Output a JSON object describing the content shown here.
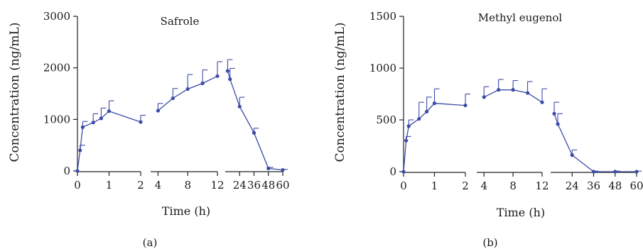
{
  "colors": {
    "series": "#3c4ba6",
    "axis": "#222222"
  },
  "chart_data": [
    {
      "type": "line",
      "panel_label": "(a)",
      "title": "Safrole",
      "xlabel": "Time (h)",
      "ylabel": "Concentration (ng/mL)",
      "ylim": [
        0,
        3000
      ],
      "yticks": [
        0,
        1000,
        2000,
        3000
      ],
      "segments": [
        {
          "xlim": [
            0,
            2
          ],
          "xticks": [
            0,
            1,
            2
          ]
        },
        {
          "xlim": [
            3,
            12
          ],
          "xticks": [
            4,
            8,
            12
          ]
        },
        {
          "xlim": [
            12,
            60
          ],
          "xticks": [
            24,
            36,
            48,
            60
          ]
        }
      ],
      "series": [
        {
          "points": [
            {
              "x": 0,
              "y": 0,
              "err": 0
            },
            {
              "x": 0.083,
              "y": 400,
              "err": 100
            },
            {
              "x": 0.167,
              "y": 850,
              "err": 110
            },
            {
              "x": 0.5,
              "y": 940,
              "err": 170
            },
            {
              "x": 0.75,
              "y": 1020,
              "err": 200
            },
            {
              "x": 1,
              "y": 1160,
              "err": 200
            },
            {
              "x": 2,
              "y": 950,
              "err": 130
            },
            {
              "x": 4,
              "y": 1170,
              "err": 140,
              "newSegment": true
            },
            {
              "x": 6,
              "y": 1410,
              "err": 190
            },
            {
              "x": 8,
              "y": 1590,
              "err": 280
            },
            {
              "x": 10,
              "y": 1700,
              "err": 260
            },
            {
              "x": 12,
              "y": 1840,
              "err": 280
            },
            {
              "x": 14,
              "y": 1940,
              "err": 220,
              "newSegment": true
            },
            {
              "x": 16,
              "y": 1780,
              "err": 210
            },
            {
              "x": 24,
              "y": 1250,
              "err": 180
            },
            {
              "x": 36,
              "y": 740,
              "err": 90
            },
            {
              "x": 48,
              "y": 50,
              "err": 20
            },
            {
              "x": 60,
              "y": 20,
              "err": 10
            }
          ]
        }
      ]
    },
    {
      "type": "line",
      "panel_label": "(b)",
      "title": "Methyl eugenol",
      "xlabel": "Time (h)",
      "ylabel": "Concentration (ng/mL)",
      "ylim": [
        0,
        1500
      ],
      "yticks": [
        0,
        500,
        1000,
        1500
      ],
      "segments": [
        {
          "xlim": [
            0,
            2
          ],
          "xticks": [
            0,
            1,
            2
          ]
        },
        {
          "xlim": [
            3,
            12
          ],
          "xticks": [
            4,
            8,
            12
          ]
        },
        {
          "xlim": [
            12,
            60
          ],
          "xticks": [
            24,
            36,
            48,
            60
          ]
        }
      ],
      "series": [
        {
          "points": [
            {
              "x": 0,
              "y": 0,
              "err": 0
            },
            {
              "x": 0.083,
              "y": 300,
              "err": 40
            },
            {
              "x": 0.167,
              "y": 440,
              "err": 60
            },
            {
              "x": 0.5,
              "y": 510,
              "err": 160
            },
            {
              "x": 0.75,
              "y": 580,
              "err": 140
            },
            {
              "x": 1,
              "y": 660,
              "err": 140
            },
            {
              "x": 2,
              "y": 640,
              "err": 110
            },
            {
              "x": 4,
              "y": 720,
              "err": 100,
              "newSegment": true
            },
            {
              "x": 6,
              "y": 790,
              "err": 100
            },
            {
              "x": 8,
              "y": 790,
              "err": 90
            },
            {
              "x": 10,
              "y": 760,
              "err": 110
            },
            {
              "x": 12,
              "y": 670,
              "err": 130
            },
            {
              "x": 14,
              "y": 560,
              "err": 110,
              "newSegment": true
            },
            {
              "x": 16,
              "y": 460,
              "err": 100
            },
            {
              "x": 24,
              "y": 160,
              "err": 50
            },
            {
              "x": 36,
              "y": 0,
              "err": 5
            },
            {
              "x": 48,
              "y": 0,
              "err": 5
            },
            {
              "x": 60,
              "y": 0,
              "err": 5
            }
          ]
        }
      ]
    }
  ]
}
